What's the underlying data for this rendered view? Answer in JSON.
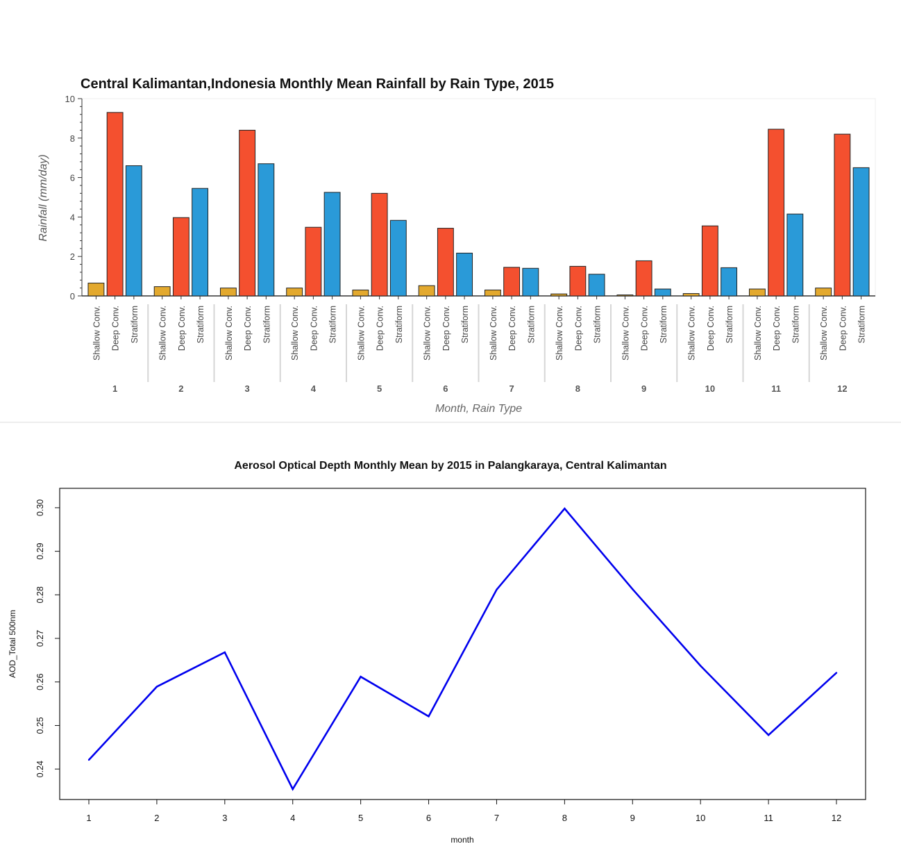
{
  "chart_data": [
    {
      "type": "bar",
      "title": "Central Kalimantan,Indonesia Monthly Mean Rainfall by Rain Type, 2015",
      "xlabel": "Month, Rain Type",
      "ylabel": "Rainfall (mm/day)",
      "ylim": [
        0,
        10
      ],
      "yticks": [
        "0",
        "2",
        "4",
        "6",
        "8",
        "10"
      ],
      "categories": [
        "1",
        "2",
        "3",
        "4",
        "5",
        "6",
        "7",
        "8",
        "9",
        "10",
        "11",
        "12"
      ],
      "subcategories": [
        "Shallow Conv.",
        "Deep Conv.",
        "Stratiform"
      ],
      "colors": [
        "#e3a92e",
        "#f4502f",
        "#2a9ad8"
      ],
      "series": [
        {
          "name": "Shallow Conv.",
          "values": [
            0.65,
            0.47,
            0.4,
            0.4,
            0.3,
            0.52,
            0.3,
            0.1,
            0.05,
            0.12,
            0.35,
            0.4
          ]
        },
        {
          "name": "Deep Conv.",
          "values": [
            9.3,
            3.97,
            8.4,
            3.48,
            5.2,
            3.43,
            1.45,
            1.5,
            1.78,
            3.55,
            8.45,
            8.2
          ]
        },
        {
          "name": "Stratiform",
          "values": [
            6.6,
            5.45,
            6.7,
            5.25,
            3.83,
            2.17,
            1.4,
            1.1,
            0.35,
            1.43,
            4.15,
            6.5
          ]
        }
      ],
      "grid": false
    },
    {
      "type": "line",
      "title": "Aerosol Optical Depth Monthly Mean by 2015 in Palangkaraya, Central Kalimantan",
      "xlabel": "month",
      "ylabel": "AOD_Total 500nm",
      "x": [
        1,
        2,
        3,
        4,
        5,
        6,
        7,
        8,
        9,
        10,
        11,
        12
      ],
      "xticks": [
        "1",
        "2",
        "3",
        "4",
        "5",
        "6",
        "7",
        "8",
        "9",
        "10",
        "11",
        "12"
      ],
      "yticks": [
        "0.24",
        "0.25",
        "0.26",
        "0.27",
        "0.28",
        "0.29",
        "0.30"
      ],
      "ylim": [
        0.2354,
        0.3019
      ],
      "series": [
        {
          "values": [
            0.2421,
            0.2589,
            0.2668,
            0.2354,
            0.2612,
            0.2521,
            0.2812,
            0.2998,
            0.2813,
            0.2637,
            0.2478,
            0.2621
          ]
        }
      ],
      "color": "#0000ee",
      "grid": false
    }
  ]
}
